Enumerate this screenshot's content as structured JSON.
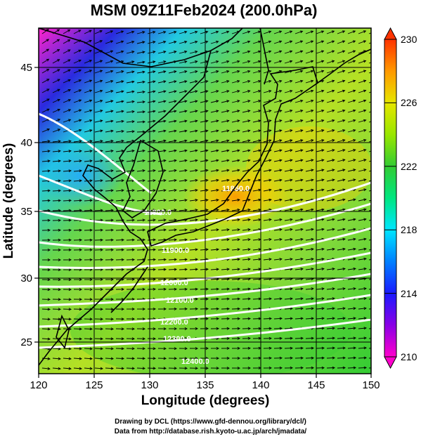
{
  "title": "MSM 09Z11Feb2024 (200.0hPa)",
  "xlabel": "Longitude (degrees)",
  "ylabel": "Latitude  (degrees)",
  "x_ticks": [
    "120",
    "125",
    "130",
    "135",
    "140",
    "145",
    "150"
  ],
  "y_ticks": [
    "25",
    "30",
    "35",
    "40",
    "45"
  ],
  "colorbar_ticks": [
    "230",
    "226",
    "222",
    "218",
    "214",
    "210"
  ],
  "contour_labels": [
    "11850.0",
    "11800.0",
    "11900.0",
    "12000.0",
    "12100.0",
    "12200.0",
    "12300.0",
    "12400.0"
  ],
  "credit_line1": "Drawing by DCL (https://www.gfd-dennou.org/library/dcl/)",
  "credit_line2": "Data from http://database.rish.kyoto-u.ac.jp/arch/jmadata/",
  "chart_data": {
    "type": "heatmap",
    "title": "MSM 09Z11Feb2024 (200.0hPa)",
    "xlabel": "Longitude (degrees)",
    "ylabel": "Latitude  (degrees)",
    "xlim": [
      120,
      150
    ],
    "ylim": [
      22.4,
      47.6
    ],
    "colorbar_range": [
      210,
      230
    ],
    "colorbar_ticks": [
      210,
      214,
      218,
      222,
      226,
      230
    ],
    "contour_levels": [
      11800,
      11850,
      11900,
      12000,
      12100,
      12200,
      12300,
      12400
    ],
    "grid": true
  }
}
